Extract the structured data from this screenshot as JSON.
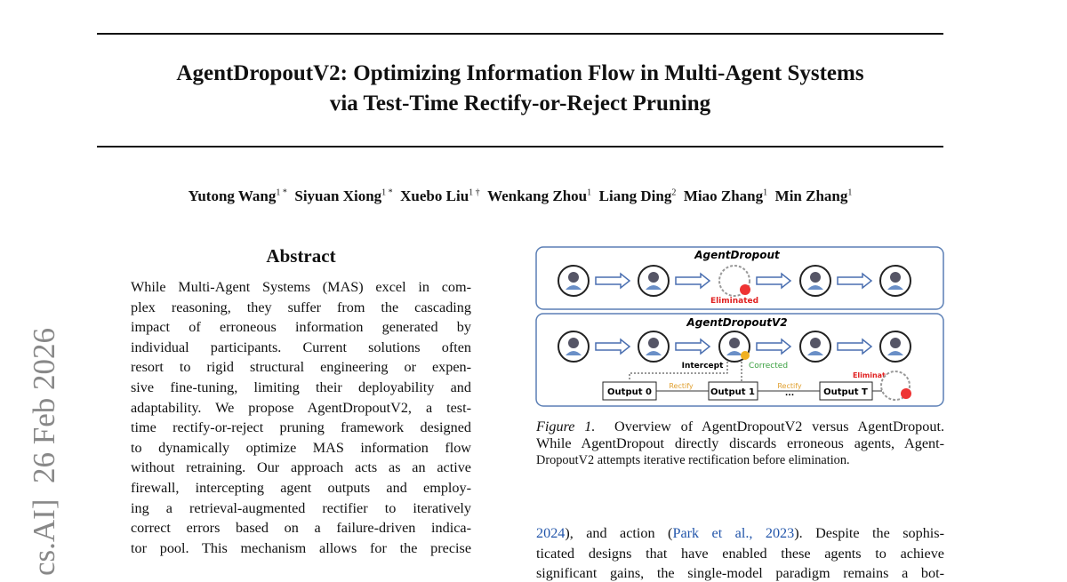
{
  "header": {
    "title_lines": [
      "AgentDropoutV2: Optimizing Information Flow in Multi-Agent Systems",
      "via Test-Time Rectify-or-Reject Pruning"
    ],
    "authors": [
      {
        "name": "Yutong Wang",
        "sup": "1 *"
      },
      {
        "name": "Siyuan Xiong",
        "sup": "1 *"
      },
      {
        "name": "Xuebo Liu",
        "sup": "1 †"
      },
      {
        "name": "Wenkang Zhou",
        "sup": "1"
      },
      {
        "name": "Liang Ding",
        "sup": "2"
      },
      {
        "name": "Miao Zhang",
        "sup": "1"
      },
      {
        "name": "Min Zhang",
        "sup": "1"
      }
    ]
  },
  "side_label": {
    "category": "cs.AI]",
    "date": "26 Feb 2026"
  },
  "abstract": {
    "heading": "Abstract",
    "lines": [
      "While Multi-Agent Systems (MAS) excel in com-",
      "plex reasoning, they suffer from the cascading",
      "impact of erroneous information generated by",
      "individual participants. Current solutions often",
      "resort to rigid structural engineering or expen-",
      "sive fine-tuning, limiting their deployability and",
      "adaptability. We propose AgentDropoutV2, a test-",
      "time rectify-or-reject pruning framework designed",
      "to dynamically optimize MAS information flow",
      "without retraining. Our approach acts as an active",
      "firewall, intercepting agent outputs and employ-",
      "ing a retrieval-augmented rectifier to iteratively",
      "correct errors based on a failure-driven indica-",
      "tor pool. This mechanism allows for the precise"
    ]
  },
  "figure": {
    "top_title": "AgentDropout",
    "top_eliminated": "Eliminated",
    "bottom_title": "AgentDropoutV2",
    "intercept": "Intercept",
    "corrected": "Corrected",
    "outputs": [
      "Output 0",
      "Output 1",
      "Output T"
    ],
    "rectify": [
      "Rectify",
      "Rectify"
    ],
    "ellipsis": "...",
    "bottom_eliminated": "Eliminated",
    "caption_label": "Figure 1.",
    "caption_lines": [
      "Overview of AgentDropoutV2 versus AgentDropout.",
      "While AgentDropout directly discards erroneous agents, Agent-",
      "DropoutV2 attempts iterative rectification before elimination."
    ]
  },
  "body": {
    "lines": [
      [
        {
          "text": "2024"
        },
        {
          "text": "), and action ("
        },
        {
          "text": "Park et al., 2023",
          "link": true
        },
        {
          "text": "). Despite the sophis-"
        }
      ],
      [
        {
          "text": "ticated designs that have enabled these agents to achieve"
        }
      ],
      [
        {
          "text": "significant gains, the single-model paradigm remains a bot-"
        }
      ]
    ]
  }
}
